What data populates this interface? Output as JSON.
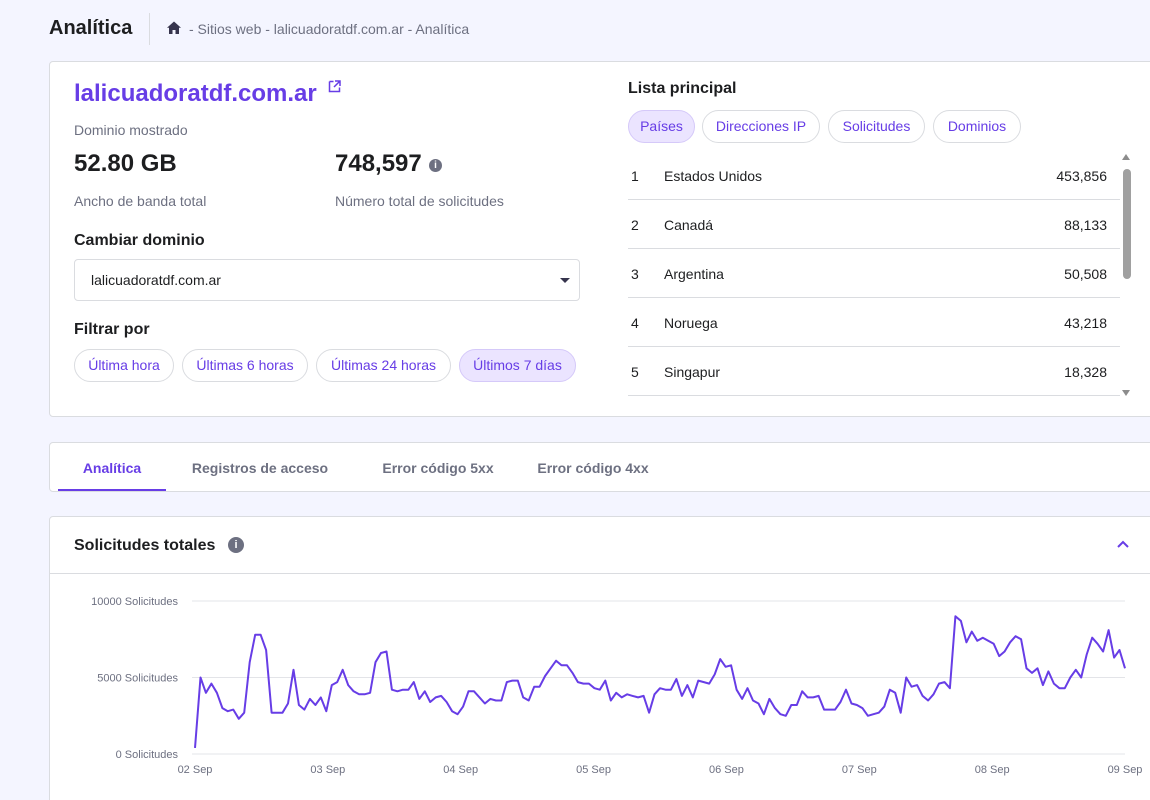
{
  "header": {
    "title": "Analítica",
    "breadcrumb": "- Sitios web - lalicuadoratdf.com.ar - Analítica"
  },
  "overview": {
    "domain": "lalicuadoratdf.com.ar",
    "domain_label": "Dominio mostrado",
    "bandwidth_value": "52.80 GB",
    "bandwidth_label": "Ancho de banda total",
    "requests_value": "748,597",
    "requests_label": "Número total de solicitudes",
    "info_glyph": "i",
    "change_domain_label": "Cambiar dominio",
    "domain_select_value": "lalicuadoratdf.com.ar",
    "filter_label": "Filtrar por",
    "filters": [
      "Última hora",
      "Últimas 6 horas",
      "Últimas 24 horas",
      "Últimos 7 días"
    ],
    "active_filter": "Últimos 7 días"
  },
  "top_list": {
    "title": "Lista principal",
    "tabs": [
      "Países",
      "Direcciones IP",
      "Solicitudes",
      "Dominios"
    ],
    "active_tab": "Países",
    "rows": [
      {
        "rank": "1",
        "name": "Estados Unidos",
        "value": "453,856"
      },
      {
        "rank": "2",
        "name": "Canadá",
        "value": "88,133"
      },
      {
        "rank": "3",
        "name": "Argentina",
        "value": "50,508"
      },
      {
        "rank": "4",
        "name": "Noruega",
        "value": "43,218"
      },
      {
        "rank": "5",
        "name": "Singapur",
        "value": "18,328"
      }
    ]
  },
  "tabs": {
    "items": [
      "Analítica",
      "Registros de acceso",
      "Error código 5xx",
      "Error código 4xx"
    ],
    "active": "Analítica"
  },
  "chart_section": {
    "title": "Solicitudes totales",
    "info_glyph": "i"
  },
  "icons": {
    "breadcrumb_home": "home-icon",
    "domain_link": "external-link-icon",
    "info": "info-icon",
    "collapse": "chevron-up-icon"
  },
  "colors": {
    "accent": "#673de6",
    "chip_active_bg": "#ebe4ff",
    "line": "#673de6"
  },
  "chart_data": {
    "type": "line",
    "title": "",
    "xlabel": "",
    "ylabel": "",
    "ylim": [
      0,
      10000
    ],
    "y_ticks": [
      0,
      5000,
      10000
    ],
    "y_tick_labels": [
      "0 Solicitudes",
      "5000 Solicitudes",
      "10000 Solicitudes"
    ],
    "x_ticks": [
      "02 Sep",
      "03 Sep",
      "04 Sep",
      "05 Sep",
      "06 Sep",
      "07 Sep",
      "08 Sep",
      "09 Sep"
    ],
    "grid": true,
    "legend": "none",
    "series": [
      {
        "values": [
          400,
          5000,
          4000,
          4600,
          4000,
          3000,
          2800,
          2900,
          2300,
          2700,
          6000,
          7800,
          7800,
          6800,
          2700,
          2700,
          2700,
          3300,
          5500,
          3200,
          2900,
          3600,
          3200,
          3700,
          2800,
          4500,
          4700,
          5500,
          4500,
          4100,
          3900,
          3900,
          4000,
          6000,
          6600,
          6700,
          4200,
          4100,
          4200,
          4200,
          4700,
          3600,
          4100,
          3400,
          3700,
          3800,
          3400,
          2800,
          2600,
          3100,
          4100,
          4100,
          3700,
          3300,
          3600,
          3500,
          3500,
          4700,
          4800,
          4800,
          3700,
          3500,
          4400,
          4400,
          5100,
          5600,
          6100,
          5800,
          5800,
          5300,
          4700,
          4600,
          4600,
          4300,
          4200,
          4800,
          3500,
          4000,
          3700,
          3900,
          3800,
          3700,
          3800,
          2700,
          3900,
          4300,
          4200,
          4200,
          4900,
          3800,
          4500,
          3700,
          4800,
          4700,
          4600,
          5200,
          6200,
          5700,
          5800,
          4200,
          3600,
          4300,
          3500,
          3300,
          2600,
          3600,
          3000,
          2600,
          2500,
          3200,
          3200,
          4100,
          3700,
          3700,
          3800,
          2900,
          2900,
          2900,
          3400,
          4200,
          3300,
          3200,
          3000,
          2500,
          2600,
          2700,
          3100,
          4200,
          4000,
          2700,
          5000,
          4400,
          4500,
          3800,
          3500,
          3900,
          4600,
          4700,
          4300,
          9000,
          8700,
          7300,
          8000,
          7400,
          7600,
          7400,
          7200,
          6400,
          6700,
          7300,
          7700,
          7500,
          5600,
          5300,
          5600,
          4500,
          5400,
          4600,
          4300,
          4300,
          5000,
          5500,
          5000,
          6500,
          7600,
          7200,
          6700,
          8100,
          6300,
          6800,
          5600
        ]
      }
    ]
  }
}
